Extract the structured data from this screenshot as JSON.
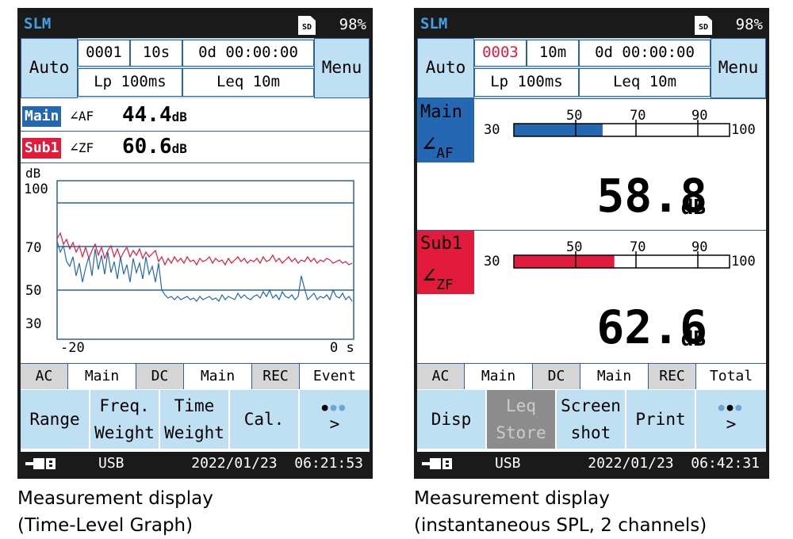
{
  "left_screen": {
    "app": "SLM",
    "sd": "SD",
    "battery": "98%",
    "auto": "Auto",
    "menu": "Menu",
    "store_no": "0001",
    "interval": "10s",
    "elapsed": "0d 00:00:00",
    "lp": "Lp 100ms",
    "leq": "Leq 10m",
    "ch_main_tag": "Main",
    "ch_main_weight": "AF",
    "ch_main_value": "44.4",
    "ch_main_unit": "dB",
    "ch_sub_tag": "Sub1",
    "ch_sub_weight": "ZF",
    "ch_sub_value": "60.6",
    "ch_sub_unit": "dB",
    "graph_y_unit": "dB",
    "graph_y_ticks": [
      "100",
      "70",
      "50",
      "30"
    ],
    "graph_x_start": "-20",
    "graph_x_end": "0 s",
    "modes": [
      "AC",
      "Main",
      "DC",
      "Main",
      "REC",
      "Event"
    ],
    "fkeys": [
      "Range",
      "Freq.",
      "Weight",
      "Time",
      "Weight",
      "Cal.",
      ">"
    ],
    "usb": "USB",
    "datetime": "2022/01/23  06:21:53"
  },
  "right_screen": {
    "app": "SLM",
    "sd": "SD",
    "battery": "98%",
    "auto": "Auto",
    "menu": "Menu",
    "store_no": "0003",
    "interval": "10m",
    "elapsed": "0d 00:00:00",
    "lp": "Lp 100ms",
    "leq": "Leq 10m",
    "ch_main_name": "Main",
    "ch_main_weight": "AF",
    "bar_scale": [
      "30",
      "50",
      "70",
      "90",
      "100"
    ],
    "ch_main_value": "58.8",
    "ch_main_unit": "dB",
    "ch_main_level": 58.8,
    "ch_sub_name": "Sub1",
    "ch_sub_weight": "ZF",
    "ch_sub_value": "62.6",
    "ch_sub_unit": "dB",
    "ch_sub_level": 62.6,
    "modes": [
      "AC",
      "Main",
      "DC",
      "Main",
      "REC",
      "Total"
    ],
    "fkeys": [
      "Disp",
      "Leq",
      "Store",
      "Screen",
      "shot",
      "Print",
      ">"
    ],
    "usb": "USB",
    "datetime": "2022/01/23  06:42:31"
  },
  "captions": {
    "left_line1": "Measurement display",
    "left_line2": "(Time-Level Graph)",
    "right_line1": "Measurement display",
    "right_line2": "(instantaneous SPL, 2 channels)"
  },
  "colors": {
    "main": "#2468b4",
    "sub": "#e21b3c",
    "panel": "#bfe0f2",
    "border": "#2a62a8"
  }
}
